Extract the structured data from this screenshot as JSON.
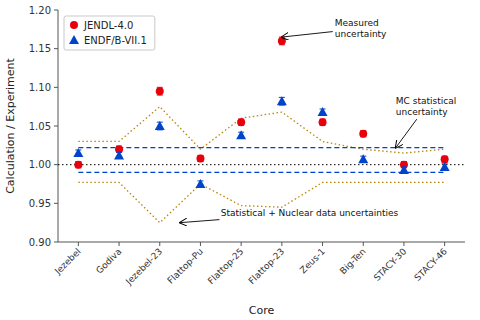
{
  "chart_data": {
    "type": "scatter",
    "categories": [
      "Jezebel",
      "Godiva",
      "Jezebel-23",
      "Flattop-Pu",
      "Flattop-25",
      "Flattop-23",
      "Zeus-1",
      "Big-Ten",
      "STACY-30",
      "STACY-46"
    ],
    "series": [
      {
        "type": "line",
        "color": "#b8860b",
        "line_style": "dotted",
        "values": [
          1.03,
          1.03,
          1.075,
          1.02,
          1.06,
          1.068,
          1.03,
          1.02,
          1.015,
          1.02
        ]
      },
      {
        "type": "line",
        "color": "#b8860b",
        "line_style": "dotted",
        "values": [
          0.977,
          0.977,
          0.925,
          0.975,
          0.947,
          0.945,
          0.977,
          0.977,
          0.977,
          0.977
        ]
      },
      {
        "type": "line",
        "color": "#0044cc",
        "line_style": "dashed",
        "values": [
          1.022,
          1.022,
          1.022,
          1.022,
          1.022,
          1.022,
          1.022,
          1.022,
          1.022,
          1.022
        ]
      },
      {
        "type": "line",
        "color": "#0044cc",
        "line_style": "dashed",
        "values": [
          0.99,
          0.99,
          0.99,
          0.99,
          0.99,
          0.99,
          0.99,
          0.99,
          0.99,
          0.99
        ]
      },
      {
        "name": "JENDL-4.0",
        "type": "scatter",
        "color": "#e8000d",
        "marker": "circle",
        "values": [
          1.0,
          1.02,
          1.095,
          1.008,
          1.055,
          1.16,
          1.055,
          1.04,
          1.0,
          1.007
        ],
        "errors": [
          0.004,
          0.004,
          0.005,
          0.004,
          0.004,
          0.005,
          0.004,
          0.004,
          0.004,
          0.004
        ]
      },
      {
        "name": "ENDF/B-VII.1",
        "type": "scatter",
        "color": "#0044cc",
        "marker": "triangle",
        "values": [
          1.015,
          1.012,
          1.05,
          0.975,
          1.038,
          1.082,
          1.068,
          1.007,
          0.993,
          0.997
        ],
        "errors": [
          0.004,
          0.004,
          0.005,
          0.004,
          0.004,
          0.005,
          0.004,
          0.004,
          0.004,
          0.004
        ]
      }
    ],
    "reference_line": {
      "value": 1.0,
      "color": "#000000",
      "line_style": "dotted"
    },
    "xlabel": "Core",
    "ylabel": "Calculation / Experiment",
    "ylim": [
      0.9,
      1.2
    ],
    "yticks": [
      {
        "value": 0.9,
        "label": "0.90"
      },
      0.95,
      {
        "value": 1.0,
        "label": "1.00"
      },
      1.05,
      {
        "value": 1.1,
        "label": "1.10"
      },
      1.15,
      {
        "value": 1.2,
        "label": "1.20"
      }
    ],
    "grid": false,
    "legend": "upper left",
    "annotations": [
      {
        "text": "Measured\nuncertainty",
        "xy": [
          5,
          1.165
        ],
        "xytext": [
          6.3,
          1.176
        ]
      },
      {
        "text": "MC statistical\nuncertainty",
        "xy": [
          7.8,
          1.022
        ],
        "xytext": [
          7.8,
          1.075
        ]
      },
      {
        "text": "Statistical + Nuclear data uncertainties",
        "xy": [
          2.5,
          0.925
        ],
        "xytext": [
          3.5,
          0.938
        ]
      }
    ]
  }
}
